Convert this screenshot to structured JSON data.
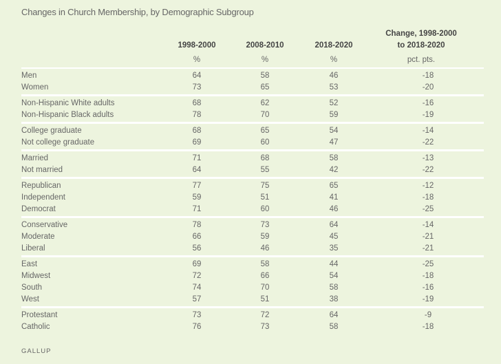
{
  "chart_data": {
    "type": "table",
    "title": "Changes in Church Membership, by Demographic Subgroup",
    "columns": [
      {
        "label": "1998-2000",
        "unit": "%"
      },
      {
        "label": "2008-2010",
        "unit": "%"
      },
      {
        "label": "2018-2020",
        "unit": "%"
      },
      {
        "label_line1": "Change, 1998-2000",
        "label_line2": "to 2018-2020",
        "unit": "pct. pts."
      }
    ],
    "groups": [
      [
        [
          "Men",
          64,
          58,
          46,
          -18
        ],
        [
          "Women",
          73,
          65,
          53,
          -20
        ]
      ],
      [
        [
          "Non-Hispanic White adults",
          68,
          62,
          52,
          -16
        ],
        [
          "Non-Hispanic Black adults",
          78,
          70,
          59,
          -19
        ]
      ],
      [
        [
          "College graduate",
          68,
          65,
          54,
          -14
        ],
        [
          "Not college graduate",
          69,
          60,
          47,
          -22
        ]
      ],
      [
        [
          "Married",
          71,
          68,
          58,
          -13
        ],
        [
          "Not married",
          64,
          55,
          42,
          -22
        ]
      ],
      [
        [
          "Republican",
          77,
          75,
          65,
          -12
        ],
        [
          "Independent",
          59,
          51,
          41,
          -18
        ],
        [
          "Democrat",
          71,
          60,
          46,
          -25
        ]
      ],
      [
        [
          "Conservative",
          78,
          73,
          64,
          -14
        ],
        [
          "Moderate",
          66,
          59,
          45,
          -21
        ],
        [
          "Liberal",
          56,
          46,
          35,
          -21
        ]
      ],
      [
        [
          "East",
          69,
          58,
          44,
          -25
        ],
        [
          "Midwest",
          72,
          66,
          54,
          -18
        ],
        [
          "South",
          74,
          70,
          58,
          -16
        ],
        [
          "West",
          57,
          51,
          38,
          -19
        ]
      ],
      [
        [
          "Protestant",
          73,
          72,
          64,
          -9
        ],
        [
          "Catholic",
          76,
          73,
          58,
          -18
        ]
      ]
    ],
    "source": "GALLUP"
  },
  "colors": {
    "background": "#edf4de",
    "text": "#666666",
    "rule": "#ffffff"
  }
}
